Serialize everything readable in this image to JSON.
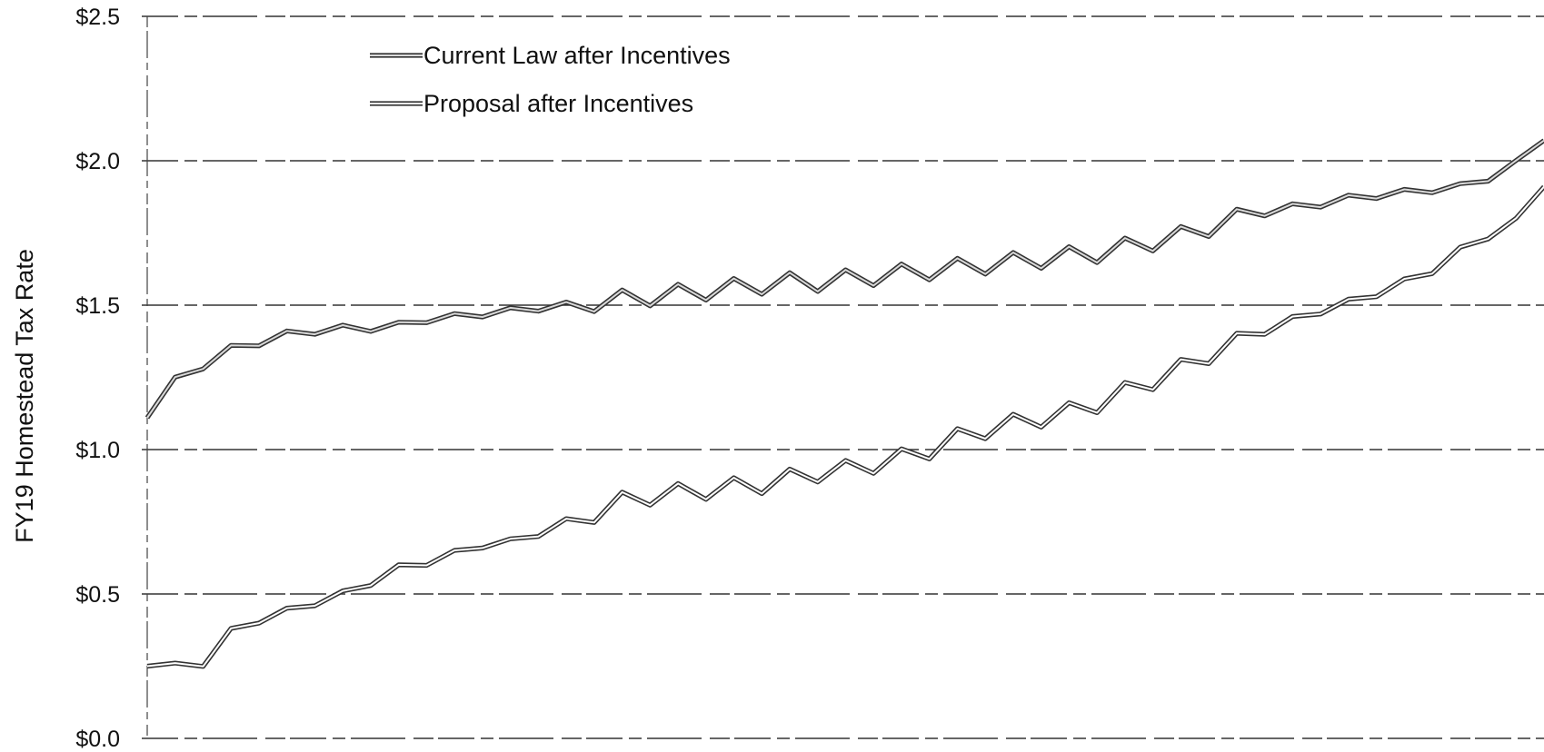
{
  "chart_data": {
    "type": "line",
    "ylabel": "FY19 Homestead Tax Rate",
    "xlabel": "",
    "ylim": [
      0,
      2.5
    ],
    "yticks": [
      {
        "value": 0.0,
        "label": "$0.0"
      },
      {
        "value": 0.5,
        "label": "$0.5"
      },
      {
        "value": 1.0,
        "label": "$1.0"
      },
      {
        "value": 1.5,
        "label": "$1.5"
      },
      {
        "value": 2.0,
        "label": "$2.0"
      },
      {
        "value": 2.5,
        "label": "$2.5"
      }
    ],
    "grid": true,
    "legend": "top-left",
    "x": [
      0,
      5,
      10,
      15,
      20,
      25,
      30,
      35,
      40,
      45,
      50,
      55,
      60,
      65,
      70,
      75,
      80,
      85,
      90,
      95,
      100,
      105,
      110,
      115,
      120,
      125,
      130,
      135,
      140,
      145,
      150,
      155,
      160,
      165,
      170,
      175,
      180,
      185,
      190,
      195,
      200,
      205,
      210,
      215,
      220,
      225,
      230,
      235,
      240,
      245,
      250
    ],
    "series": [
      {
        "name": "Current Law after Incentives",
        "values": [
          1.11,
          1.24,
          1.29,
          1.35,
          1.37,
          1.4,
          1.41,
          1.42,
          1.42,
          1.43,
          1.45,
          1.46,
          1.47,
          1.48,
          1.49,
          1.5,
          1.51,
          1.52,
          1.53,
          1.54,
          1.55,
          1.56,
          1.57,
          1.58,
          1.58,
          1.59,
          1.6,
          1.61,
          1.62,
          1.63,
          1.64,
          1.65,
          1.66,
          1.67,
          1.68,
          1.7,
          1.72,
          1.74,
          1.77,
          1.8,
          1.82,
          1.84,
          1.85,
          1.87,
          1.88,
          1.89,
          1.9,
          1.91,
          1.94,
          1.99,
          2.07
        ]
      },
      {
        "name": "Proposal after Incentives",
        "values": [
          0.25,
          0.25,
          0.26,
          0.37,
          0.41,
          0.44,
          0.47,
          0.5,
          0.54,
          0.59,
          0.61,
          0.64,
          0.67,
          0.68,
          0.71,
          0.75,
          0.78,
          0.82,
          0.84,
          0.85,
          0.86,
          0.87,
          0.88,
          0.9,
          0.92,
          0.93,
          0.95,
          0.97,
          1.0,
          1.04,
          1.07,
          1.09,
          1.11,
          1.13,
          1.16,
          1.2,
          1.24,
          1.28,
          1.33,
          1.37,
          1.41,
          1.45,
          1.48,
          1.51,
          1.54,
          1.58,
          1.62,
          1.69,
          1.74,
          1.79,
          1.91
        ]
      }
    ]
  }
}
